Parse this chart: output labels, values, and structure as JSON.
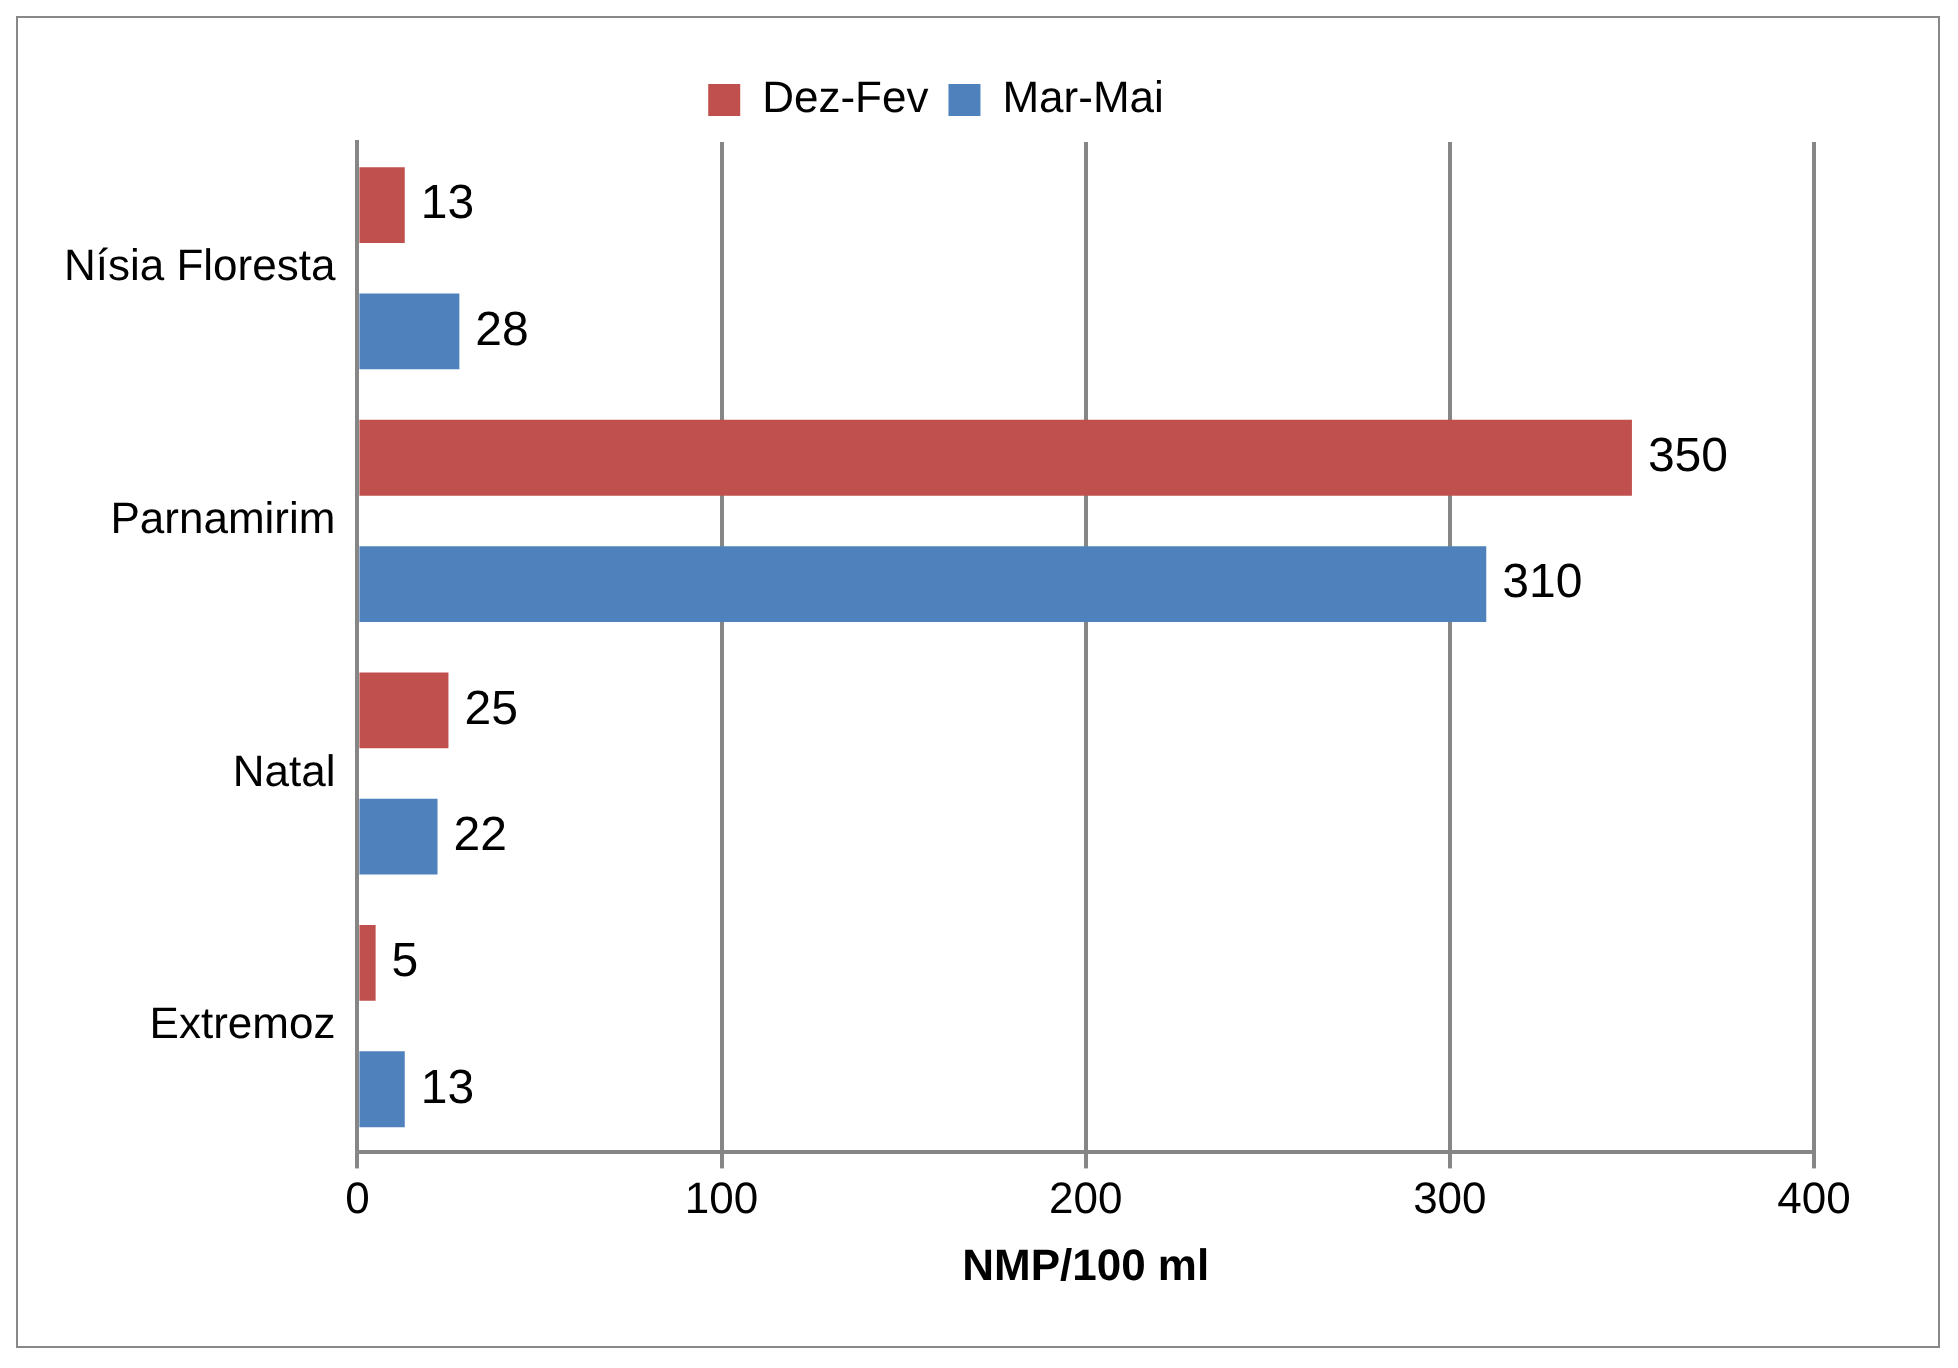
{
  "chart_data": {
    "type": "bar",
    "orientation": "horizontal",
    "categories": [
      "Nísia Floresta",
      "Parnamirim",
      "Natal",
      "Extremoz"
    ],
    "series": [
      {
        "name": "Dez-Fev",
        "color": "#c0504d",
        "values": [
          13,
          350,
          25,
          5
        ]
      },
      {
        "name": "Mar-Mai",
        "color": "#4f81bd",
        "values": [
          28,
          310,
          22,
          13
        ]
      }
    ],
    "xlabel": "NMP/100 ml",
    "xlim": [
      0,
      400
    ],
    "xticks": [
      0,
      100,
      200,
      300,
      400
    ],
    "grid": "x",
    "legend": "top",
    "data_labels": true
  }
}
